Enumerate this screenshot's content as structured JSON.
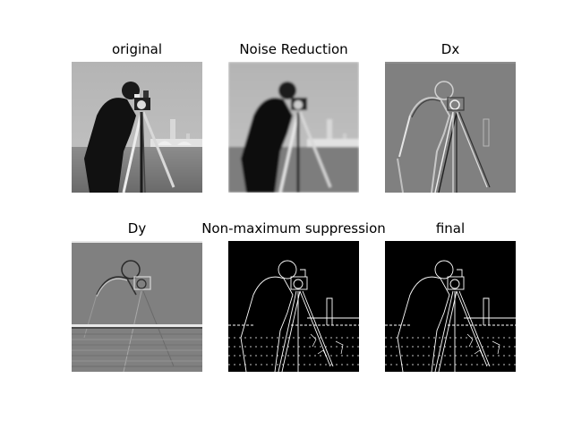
{
  "figure": {
    "panels": [
      {
        "id": "original",
        "title": "original",
        "style": "photo"
      },
      {
        "id": "noise-reduction",
        "title": "Noise Reduction",
        "style": "blurred"
      },
      {
        "id": "dx",
        "title": "Dx",
        "style": "gradient-x"
      },
      {
        "id": "dy",
        "title": "Dy",
        "style": "gradient-y"
      },
      {
        "id": "nms",
        "title": "Non-maximum suppression",
        "style": "edges"
      },
      {
        "id": "final",
        "title": "final",
        "style": "edges"
      }
    ]
  },
  "colors": {
    "background": "#ffffff",
    "edge_background": "#000000",
    "gradient_gray": "#808080",
    "sky": "#b9b9b9",
    "grass": "#7a7a7a"
  }
}
